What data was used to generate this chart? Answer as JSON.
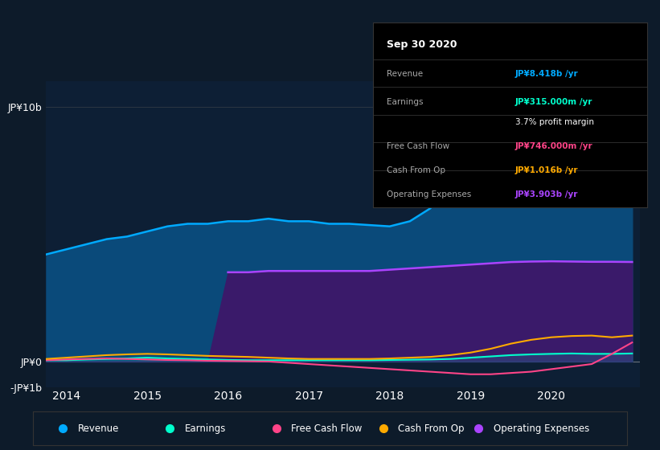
{
  "bg_color": "#0d1b2a",
  "chart_bg": "#0d1f35",
  "title": "Sep 30 2020",
  "years": [
    2013.75,
    2014.0,
    2014.25,
    2014.5,
    2014.75,
    2015.0,
    2015.25,
    2015.5,
    2015.75,
    2016.0,
    2016.25,
    2016.5,
    2016.75,
    2017.0,
    2017.25,
    2017.5,
    2017.75,
    2018.0,
    2018.25,
    2018.5,
    2018.75,
    2019.0,
    2019.25,
    2019.5,
    2019.75,
    2020.0,
    2020.25,
    2020.5,
    2020.75,
    2021.0
  ],
  "revenue": [
    4.2,
    4.4,
    4.6,
    4.8,
    4.9,
    5.1,
    5.3,
    5.4,
    5.4,
    5.5,
    5.5,
    5.6,
    5.5,
    5.5,
    5.4,
    5.4,
    5.35,
    5.3,
    5.5,
    6.0,
    6.8,
    7.8,
    8.6,
    9.0,
    9.0,
    8.9,
    8.8,
    8.6,
    8.5,
    8.418
  ],
  "operating_expenses": [
    0.0,
    0.0,
    0.0,
    0.0,
    0.0,
    0.0,
    0.0,
    0.0,
    0.0,
    3.5,
    3.5,
    3.55,
    3.55,
    3.55,
    3.55,
    3.55,
    3.55,
    3.6,
    3.65,
    3.7,
    3.75,
    3.8,
    3.85,
    3.9,
    3.92,
    3.93,
    3.92,
    3.91,
    3.91,
    3.903
  ],
  "earnings": [
    0.05,
    0.05,
    0.08,
    0.1,
    0.12,
    0.15,
    0.12,
    0.1,
    0.08,
    0.06,
    0.05,
    0.05,
    0.05,
    0.05,
    0.05,
    0.05,
    0.05,
    0.06,
    0.07,
    0.08,
    0.1,
    0.15,
    0.2,
    0.25,
    0.28,
    0.3,
    0.315,
    0.3,
    0.3,
    0.315
  ],
  "free_cash_flow": [
    0.05,
    0.08,
    0.1,
    0.12,
    0.1,
    0.08,
    0.06,
    0.05,
    0.03,
    0.02,
    0.01,
    0.0,
    -0.05,
    -0.1,
    -0.15,
    -0.2,
    -0.25,
    -0.3,
    -0.35,
    -0.4,
    -0.45,
    -0.5,
    -0.5,
    -0.45,
    -0.4,
    -0.3,
    -0.2,
    -0.1,
    0.3,
    0.746
  ],
  "cash_from_op": [
    0.1,
    0.15,
    0.2,
    0.25,
    0.28,
    0.3,
    0.28,
    0.25,
    0.22,
    0.2,
    0.18,
    0.15,
    0.12,
    0.1,
    0.1,
    0.1,
    0.1,
    0.12,
    0.15,
    0.18,
    0.25,
    0.35,
    0.5,
    0.7,
    0.85,
    0.95,
    1.0,
    1.016,
    0.95,
    1.016
  ],
  "revenue_color": "#00aaff",
  "revenue_fill": "#0a4a7a",
  "operating_expenses_color": "#aa44ff",
  "operating_expenses_fill": "#3a1a6a",
  "earnings_color": "#00ffcc",
  "free_cash_flow_color": "#ff4488",
  "cash_from_op_color": "#ffaa00",
  "ylim": [
    -1.0,
    11.0
  ],
  "yticks": [
    -1.0,
    0.0,
    10.0
  ],
  "ytick_labels": [
    "-JP¥1b",
    "JP¥0",
    "JP¥10b"
  ],
  "xticks": [
    2014,
    2015,
    2016,
    2017,
    2018,
    2019,
    2020
  ],
  "tooltip_rows": [
    {
      "label": "Revenue",
      "value": "JP¥8.418b /yr",
      "color": "#00aaff"
    },
    {
      "label": "Earnings",
      "value": "JP¥315.000m /yr",
      "color": "#00ffcc"
    },
    {
      "label": "",
      "value": "3.7% profit margin",
      "color": "white"
    },
    {
      "label": "Free Cash Flow",
      "value": "JP¥746.000m /yr",
      "color": "#ff4488"
    },
    {
      "label": "Cash From Op",
      "value": "JP¥1.016b /yr",
      "color": "#ffaa00"
    },
    {
      "label": "Operating Expenses",
      "value": "JP¥3.903b /yr",
      "color": "#aa44ff"
    }
  ],
  "legend_items": [
    {
      "label": "Revenue",
      "color": "#00aaff"
    },
    {
      "label": "Earnings",
      "color": "#00ffcc"
    },
    {
      "label": "Free Cash Flow",
      "color": "#ff4488"
    },
    {
      "label": "Cash From Op",
      "color": "#ffaa00"
    },
    {
      "label": "Operating Expenses",
      "color": "#aa44ff"
    }
  ]
}
